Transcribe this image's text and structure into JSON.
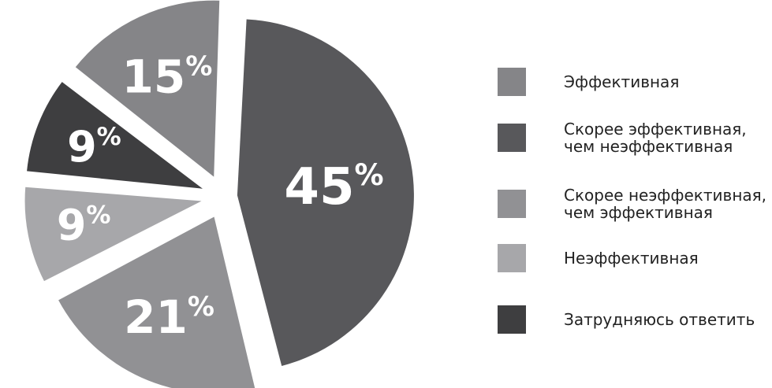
{
  "chart_data": {
    "type": "pie",
    "title": "",
    "legend_position": "right",
    "slices": [
      {
        "label": "Скорее эффективная,\nчем неэффективная",
        "value": 45,
        "display": "45",
        "unit": "%",
        "color": "#58585b",
        "exploded": false
      },
      {
        "label": "Скорее неэффективная,\nчем эффективная",
        "value": 21,
        "display": "21",
        "unit": "%",
        "color": "#919194",
        "exploded": true
      },
      {
        "label": "Неэффективная",
        "value": 9,
        "display": "9",
        "unit": "%",
        "color": "#a7a7aa",
        "exploded": true
      },
      {
        "label": "Затрудняюсь ответить",
        "value": 9,
        "display": "9",
        "unit": "%",
        "color": "#3e3e40",
        "exploded": true
      },
      {
        "label": "Эффективная",
        "value": 15,
        "display": "15",
        "unit": "%",
        "color": "#858588",
        "exploded": true
      }
    ],
    "legend_order": [
      4,
      0,
      1,
      2,
      3
    ]
  }
}
